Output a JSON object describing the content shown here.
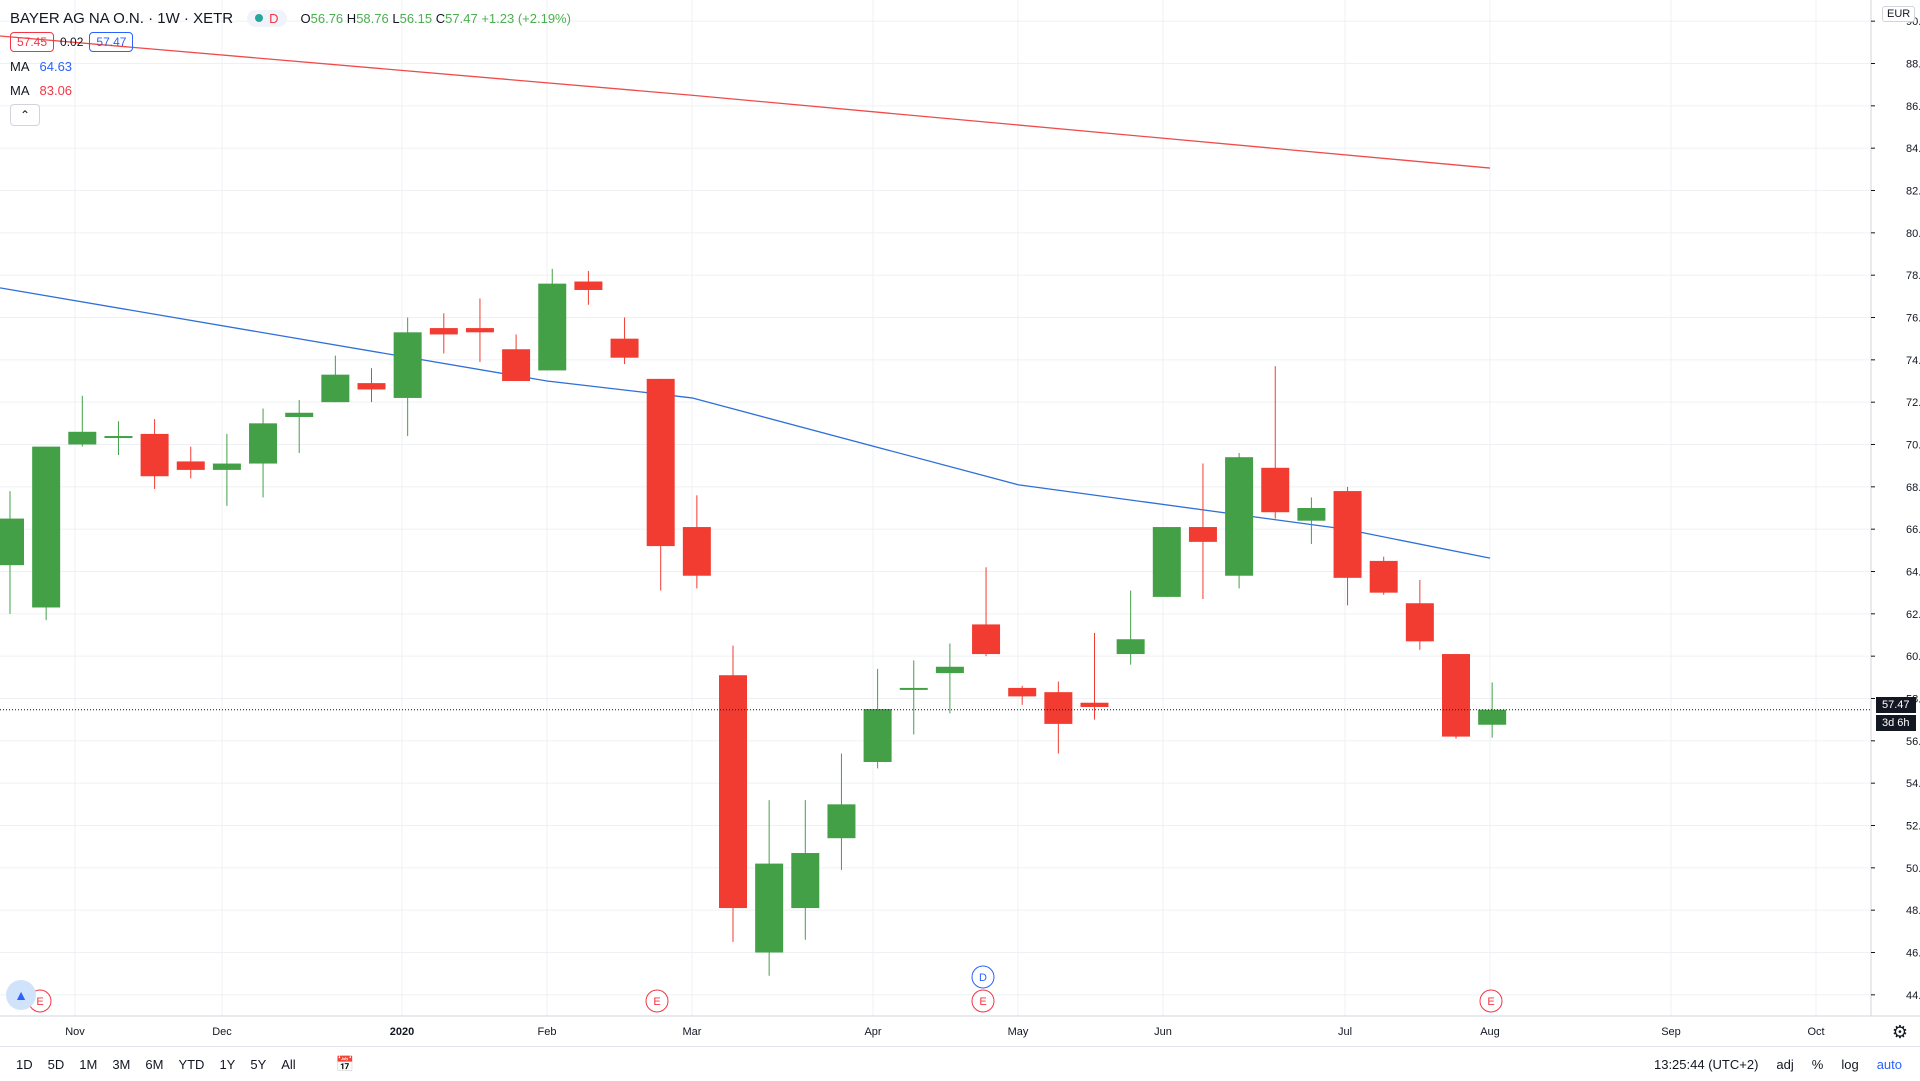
{
  "header": {
    "symbol": "BAYER AG NA O.N. · 1W · XETR",
    "status_label": "D",
    "ohlc": {
      "o_label": "O",
      "o": "56.76",
      "h_label": "H",
      "h": "58.76",
      "l_label": "L",
      "l": "56.15",
      "c_label": "C",
      "c": "57.47",
      "change": "+1.23 (+2.19%)"
    },
    "bid": "57.45",
    "spread": "0.02",
    "ask": "57.47",
    "ma1": {
      "label": "MA",
      "value": "64.63"
    },
    "ma2": {
      "label": "MA",
      "value": "83.06"
    }
  },
  "currency": "EUR",
  "price_label": "57.47",
  "countdown": "3d 6h",
  "bottom_bar": {
    "ranges": [
      "1D",
      "5D",
      "1M",
      "3M",
      "6M",
      "YTD",
      "1Y",
      "5Y",
      "All"
    ],
    "clock": "13:25:44 (UTC+2)",
    "adj": "adj",
    "percent": "%",
    "log": "log",
    "auto": "auto"
  },
  "colors": {
    "up": "#43a047",
    "down": "#f23c32",
    "ma_fast": "#2f6fd8",
    "ma_slow": "#ef4b4b",
    "grid": "#eef0f4"
  },
  "chart_data": {
    "type": "candlestick",
    "ylim": [
      43,
      91
    ],
    "y_ticks": [
      "44.00",
      "46.00",
      "48.00",
      "50.00",
      "52.00",
      "54.00",
      "56.00",
      "58.00",
      "60.00",
      "62.00",
      "64.00",
      "66.00",
      "68.00",
      "70.00",
      "72.00",
      "74.00",
      "76.00",
      "78.00",
      "80.00",
      "82.00",
      "84.00",
      "86.00",
      "88.00",
      "90.00"
    ],
    "x_ticks": [
      "Nov",
      "Dec",
      "2020",
      "Feb",
      "Mar",
      "Apr",
      "May",
      "Jun",
      "Jul",
      "Aug",
      "Sep",
      "Oct"
    ],
    "candles": [
      {
        "o": 64.3,
        "h": 67.8,
        "l": 62.0,
        "c": 66.5
      },
      {
        "o": 62.3,
        "h": 69.9,
        "l": 61.7,
        "c": 69.9
      },
      {
        "o": 70.0,
        "h": 72.3,
        "l": 69.9,
        "c": 70.6
      },
      {
        "o": 70.4,
        "h": 71.1,
        "l": 69.5,
        "c": 70.4
      },
      {
        "o": 70.5,
        "h": 71.2,
        "l": 67.9,
        "c": 68.5
      },
      {
        "o": 69.2,
        "h": 69.9,
        "l": 68.4,
        "c": 68.8
      },
      {
        "o": 68.8,
        "h": 70.5,
        "l": 67.1,
        "c": 69.1
      },
      {
        "o": 69.1,
        "h": 71.7,
        "l": 67.5,
        "c": 71.0
      },
      {
        "o": 71.3,
        "h": 72.1,
        "l": 69.6,
        "c": 71.5
      },
      {
        "o": 72.0,
        "h": 74.2,
        "l": 72.0,
        "c": 73.3
      },
      {
        "o": 72.9,
        "h": 73.6,
        "l": 72.0,
        "c": 72.6
      },
      {
        "o": 72.2,
        "h": 76.0,
        "l": 70.4,
        "c": 75.3
      },
      {
        "o": 75.5,
        "h": 76.2,
        "l": 74.3,
        "c": 75.2
      },
      {
        "o": 75.5,
        "h": 76.9,
        "l": 73.9,
        "c": 75.3
      },
      {
        "o": 74.5,
        "h": 75.2,
        "l": 73.0,
        "c": 73.0
      },
      {
        "o": 73.5,
        "h": 78.3,
        "l": 73.5,
        "c": 77.6
      },
      {
        "o": 77.7,
        "h": 78.2,
        "l": 76.6,
        "c": 77.3
      },
      {
        "o": 75.0,
        "h": 76.0,
        "l": 73.8,
        "c": 74.1
      },
      {
        "o": 73.1,
        "h": 73.1,
        "l": 63.1,
        "c": 65.2
      },
      {
        "o": 66.1,
        "h": 67.6,
        "l": 63.2,
        "c": 63.8
      },
      {
        "o": 59.1,
        "h": 60.5,
        "l": 46.5,
        "c": 48.1
      },
      {
        "o": 46.0,
        "h": 53.2,
        "l": 44.9,
        "c": 50.2
      },
      {
        "o": 48.1,
        "h": 53.2,
        "l": 46.6,
        "c": 50.7
      },
      {
        "o": 51.4,
        "h": 55.4,
        "l": 49.9,
        "c": 53.0
      },
      {
        "o": 55.0,
        "h": 59.4,
        "l": 54.7,
        "c": 57.5
      },
      {
        "o": 58.5,
        "h": 59.8,
        "l": 56.3,
        "c": 58.5
      },
      {
        "o": 59.2,
        "h": 60.6,
        "l": 57.3,
        "c": 59.5
      },
      {
        "o": 61.5,
        "h": 64.2,
        "l": 60.0,
        "c": 60.1
      },
      {
        "o": 58.5,
        "h": 58.6,
        "l": 57.7,
        "c": 58.1
      },
      {
        "o": 58.3,
        "h": 58.8,
        "l": 55.4,
        "c": 56.8
      },
      {
        "o": 57.8,
        "h": 61.1,
        "l": 57.0,
        "c": 57.6
      },
      {
        "o": 60.1,
        "h": 63.1,
        "l": 59.6,
        "c": 60.8
      },
      {
        "o": 62.8,
        "h": 66.1,
        "l": 62.8,
        "c": 66.1
      },
      {
        "o": 66.1,
        "h": 69.1,
        "l": 62.7,
        "c": 65.4
      },
      {
        "o": 63.8,
        "h": 69.6,
        "l": 63.2,
        "c": 69.4
      },
      {
        "o": 68.9,
        "h": 73.7,
        "l": 66.5,
        "c": 66.8
      },
      {
        "o": 66.4,
        "h": 67.5,
        "l": 65.3,
        "c": 67.0
      },
      {
        "o": 67.8,
        "h": 68.0,
        "l": 62.4,
        "c": 63.7
      },
      {
        "o": 64.5,
        "h": 64.7,
        "l": 62.9,
        "c": 63.0
      },
      {
        "o": 62.5,
        "h": 63.6,
        "l": 60.3,
        "c": 60.7
      },
      {
        "o": 60.1,
        "h": 60.1,
        "l": 56.1,
        "c": 56.2
      },
      {
        "o": 56.76,
        "h": 58.76,
        "l": 56.15,
        "c": 57.47
      }
    ],
    "ma_fast": [
      77.4,
      73.0,
      72.2,
      68.1,
      66.0,
      64.63
    ],
    "ma_slow": [
      89.3,
      86.5,
      83.06
    ],
    "events": [
      {
        "label": "E",
        "row": "bottom"
      },
      {
        "label": "E",
        "row": "bottom"
      },
      {
        "label": "D",
        "row": "top"
      },
      {
        "label": "E",
        "row": "bottom"
      },
      {
        "label": "E",
        "row": "bottom"
      }
    ]
  }
}
